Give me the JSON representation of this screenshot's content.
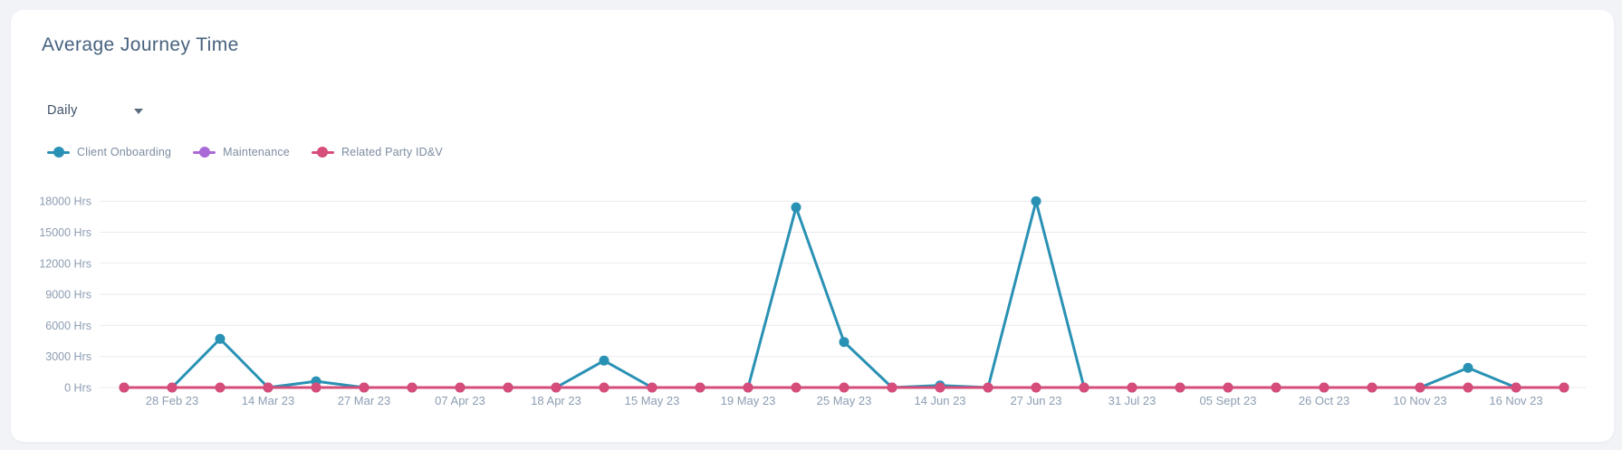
{
  "card": {
    "title": "Average Journey Time"
  },
  "period_selector": {
    "value": "Daily",
    "icon": "caret-down"
  },
  "chart_data": {
    "type": "line",
    "title": "Average Journey Time",
    "unit": "Hrs",
    "grid": "horizontal",
    "legend_position": "top-left",
    "num_points": 31,
    "x_tick_positions": [
      1,
      3,
      5,
      7,
      9,
      11,
      13,
      15,
      17,
      19,
      21,
      23,
      25,
      27,
      29
    ],
    "x_tick_labels": [
      "28 Feb 23",
      "14 Mar 23",
      "27 Mar 23",
      "07 Apr 23",
      "18 Apr 23",
      "15 May 23",
      "19 May 23",
      "25 May 23",
      "14 Jun 23",
      "27 Jun 23",
      "31 Jul 23",
      "05 Sept 23",
      "26 Oct 23",
      "10 Nov 23",
      "16 Nov 23"
    ],
    "y_ticks": [
      {
        "value": 0,
        "label": "0 Hrs"
      },
      {
        "value": 3000,
        "label": "3000 Hrs"
      },
      {
        "value": 6000,
        "label": "6000 Hrs"
      },
      {
        "value": 9000,
        "label": "9000 Hrs"
      },
      {
        "value": 12000,
        "label": "12000 Hrs"
      },
      {
        "value": 15000,
        "label": "15000 Hrs"
      },
      {
        "value": 18000,
        "label": "18000 Hrs"
      }
    ],
    "ylim": [
      0,
      19500
    ],
    "series": [
      {
        "name": "Client Onboarding",
        "color": "#2991b4",
        "values": [
          0,
          0,
          4700,
          0,
          600,
          0,
          0,
          0,
          0,
          0,
          2600,
          0,
          0,
          0,
          17400,
          4400,
          0,
          200,
          0,
          18000,
          0,
          0,
          0,
          0,
          0,
          0,
          0,
          0,
          1900,
          0,
          0
        ]
      },
      {
        "name": "Maintenance",
        "color": "#a969d6",
        "values": [
          0,
          0,
          0,
          0,
          0,
          0,
          0,
          0,
          0,
          0,
          0,
          0,
          0,
          0,
          0,
          0,
          0,
          0,
          0,
          0,
          0,
          0,
          0,
          0,
          0,
          0,
          0,
          0,
          0,
          0,
          0
        ]
      },
      {
        "name": "Related Party ID&V",
        "color": "#d64d79",
        "values": [
          0,
          0,
          0,
          0,
          0,
          0,
          0,
          0,
          0,
          0,
          0,
          0,
          0,
          0,
          0,
          0,
          0,
          0,
          0,
          0,
          0,
          0,
          0,
          0,
          0,
          0,
          0,
          0,
          0,
          0,
          0
        ]
      }
    ],
    "colors": {
      "axis_label": "#8c9db2",
      "grid_line": "#e8eaed",
      "title": "#47617e"
    }
  }
}
